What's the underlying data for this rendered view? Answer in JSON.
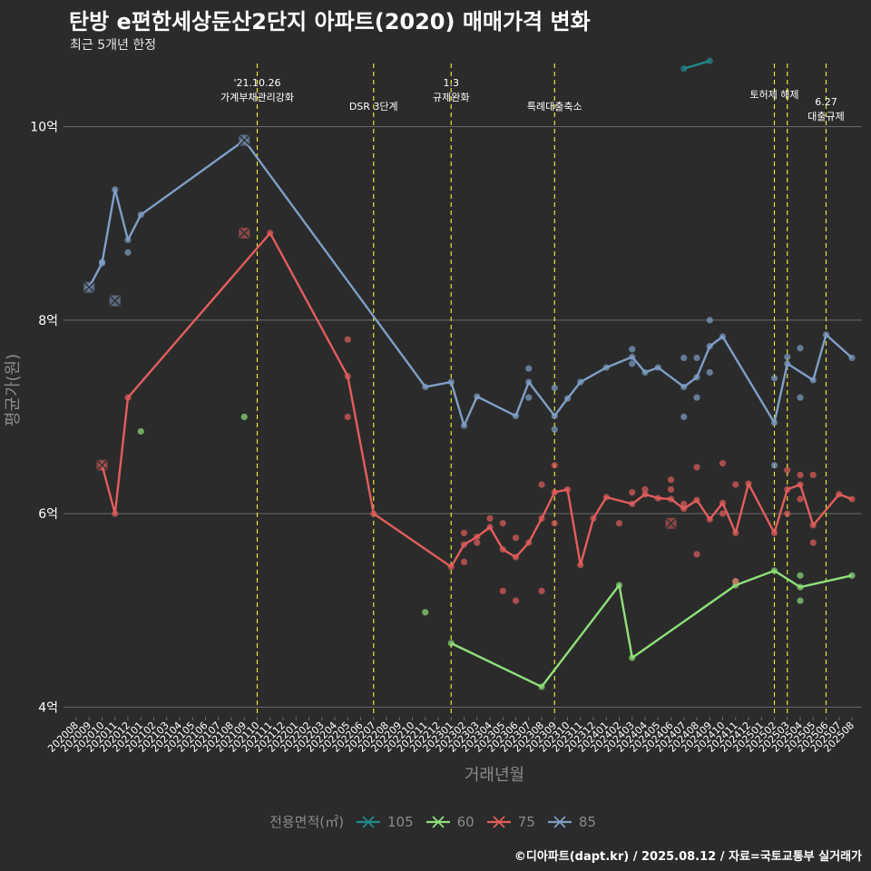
{
  "title": "탄방 e편한세상둔산2단지 아파트(2020) 매매가격 변화",
  "subtitle": "최근 5개년 한정",
  "caption": "©디아파트(dapt.kr) / 2025.08.12 / 자료=국토교통부 실거래가",
  "legend_title": "전용면적(㎡)",
  "chart_data": {
    "type": "line",
    "xlabel": "거래년월",
    "ylabel": "평균가(원)",
    "ylim": [
      3.9,
      10.7
    ],
    "yticks": [
      {
        "value": 4,
        "label": "4억"
      },
      {
        "value": 6,
        "label": "6억"
      },
      {
        "value": 8,
        "label": "8억"
      },
      {
        "value": 10,
        "label": "10억"
      }
    ],
    "categories": [
      "202008",
      "202009",
      "202010",
      "202011",
      "202012",
      "202101",
      "202102",
      "202103",
      "202104",
      "202105",
      "202106",
      "202107",
      "202108",
      "202109",
      "202110",
      "202111",
      "202112",
      "202201",
      "202202",
      "202203",
      "202204",
      "202205",
      "202206",
      "202207",
      "202208",
      "202209",
      "202210",
      "202211",
      "202212",
      "202301",
      "202302",
      "202303",
      "202304",
      "202305",
      "202306",
      "202307",
      "202308",
      "202309",
      "202310",
      "202311",
      "202312",
      "202401",
      "202402",
      "202403",
      "202404",
      "202405",
      "202406",
      "202407",
      "202408",
      "202409",
      "202410",
      "202411",
      "202412",
      "202501",
      "202502",
      "202503",
      "202504",
      "202505",
      "202506",
      "202507",
      "202508"
    ],
    "events": [
      {
        "x": "202110",
        "label": [
          "'21.10.26",
          "가계부채관리강화"
        ],
        "row": 0
      },
      {
        "x": "202207",
        "label": [
          "DSR 3단계"
        ],
        "row": 2
      },
      {
        "x": "202301",
        "label": [
          "1.3",
          "규제완화"
        ],
        "row": 0
      },
      {
        "x": "202309",
        "label": [
          "특례대출축소"
        ],
        "row": 2
      },
      {
        "x": "202502",
        "label": [
          "토허제 해제"
        ],
        "row": 1
      },
      {
        "x": "202503",
        "label": [],
        "row": 1
      },
      {
        "x": "202506",
        "label": [
          "6.27",
          "대출규제"
        ],
        "row": 1.6
      }
    ],
    "series": [
      {
        "name": "105",
        "color": "#1f8a8a",
        "line": [
          [
            "202407",
            10.6
          ],
          [
            "202409",
            10.68
          ]
        ],
        "points": [],
        "crosses": []
      },
      {
        "name": "60",
        "color": "#8fe07a",
        "line": [
          [
            "202301",
            4.66
          ],
          [
            "202308",
            4.21
          ],
          [
            "202402",
            5.26
          ],
          [
            "202403",
            4.51
          ],
          [
            "202411",
            5.26
          ],
          [
            "202502",
            5.41
          ],
          [
            "202504",
            5.24
          ],
          [
            "202508",
            5.36
          ]
        ],
        "points": [
          [
            "202101",
            6.85
          ],
          [
            "202109",
            7.0
          ],
          [
            "202211",
            4.98
          ],
          [
            "202411",
            5.3
          ],
          [
            "202504",
            5.36
          ],
          [
            "202504",
            5.1
          ]
        ],
        "crosses": []
      },
      {
        "name": "75",
        "color": "#e35d5d",
        "line": [
          [
            "202010",
            6.5
          ],
          [
            "202011",
            6.0
          ],
          [
            "202012",
            7.2
          ],
          [
            "202111",
            8.9
          ],
          [
            "202205",
            7.42
          ],
          [
            "202207",
            6.0
          ],
          [
            "202301",
            5.45
          ],
          [
            "202302",
            5.68
          ],
          [
            "202303",
            5.76
          ],
          [
            "202304",
            5.86
          ],
          [
            "202305",
            5.63
          ],
          [
            "202306",
            5.55
          ],
          [
            "202307",
            5.7
          ],
          [
            "202308",
            5.95
          ],
          [
            "202309",
            6.22
          ],
          [
            "202310",
            6.25
          ],
          [
            "202311",
            5.47
          ],
          [
            "202312",
            5.95
          ],
          [
            "202401",
            6.17
          ],
          [
            "202403",
            6.1
          ],
          [
            "202404",
            6.2
          ],
          [
            "202405",
            6.16
          ],
          [
            "202406",
            6.15
          ],
          [
            "202407",
            6.05
          ],
          [
            "202408",
            6.14
          ],
          [
            "202409",
            5.94
          ],
          [
            "202410",
            6.11
          ],
          [
            "202411",
            5.8
          ],
          [
            "202412",
            6.31
          ],
          [
            "202502",
            5.8
          ],
          [
            "202503",
            6.25
          ],
          [
            "202504",
            6.3
          ],
          [
            "202505",
            5.88
          ],
          [
            "202507",
            6.2
          ],
          [
            "202508",
            6.15
          ]
        ],
        "points": [
          [
            "202205",
            7.8
          ],
          [
            "202205",
            7.0
          ],
          [
            "202302",
            5.8
          ],
          [
            "202302",
            5.5
          ],
          [
            "202303",
            5.7
          ],
          [
            "202304",
            5.95
          ],
          [
            "202305",
            5.9
          ],
          [
            "202305",
            5.2
          ],
          [
            "202306",
            5.75
          ],
          [
            "202306",
            5.1
          ],
          [
            "202308",
            6.3
          ],
          [
            "202308",
            5.2
          ],
          [
            "202309",
            6.5
          ],
          [
            "202309",
            5.9
          ],
          [
            "202402",
            5.9
          ],
          [
            "202403",
            6.22
          ],
          [
            "202404",
            6.25
          ],
          [
            "202406",
            6.35
          ],
          [
            "202406",
            6.25
          ],
          [
            "202407",
            6.1
          ],
          [
            "202408",
            6.48
          ],
          [
            "202408",
            5.58
          ],
          [
            "202410",
            6.52
          ],
          [
            "202410",
            6.0
          ],
          [
            "202411",
            6.3
          ],
          [
            "202411",
            5.3
          ],
          [
            "202503",
            6.45
          ],
          [
            "202503",
            6.0
          ],
          [
            "202504",
            6.4
          ],
          [
            "202504",
            6.15
          ],
          [
            "202505",
            6.4
          ],
          [
            "202505",
            5.7
          ]
        ],
        "crosses": [
          [
            "202010",
            6.5
          ],
          [
            "202109",
            8.9
          ],
          [
            "202406",
            5.9
          ]
        ]
      },
      {
        "name": "85",
        "color": "#7f9fc8",
        "line": [
          [
            "202009",
            8.34
          ],
          [
            "202010",
            8.59
          ],
          [
            "202011",
            9.35
          ],
          [
            "202012",
            8.83
          ],
          [
            "202101",
            9.09
          ],
          [
            "202109",
            9.86
          ],
          [
            "202211",
            7.31
          ],
          [
            "202301",
            7.36
          ],
          [
            "202302",
            6.91
          ],
          [
            "202303",
            7.21
          ],
          [
            "202306",
            7.01
          ],
          [
            "202307",
            7.36
          ],
          [
            "202309",
            7.01
          ],
          [
            "202310",
            7.19
          ],
          [
            "202311",
            7.36
          ],
          [
            "202401",
            7.51
          ],
          [
            "202403",
            7.62
          ],
          [
            "202404",
            7.46
          ],
          [
            "202405",
            7.51
          ],
          [
            "202407",
            7.31
          ],
          [
            "202408",
            7.41
          ],
          [
            "202409",
            7.73
          ],
          [
            "202410",
            7.83
          ],
          [
            "202502",
            6.94
          ],
          [
            "202503",
            7.55
          ],
          [
            "202505",
            7.38
          ],
          [
            "202506",
            7.85
          ],
          [
            "202508",
            7.61
          ]
        ],
        "points": [
          [
            "202010",
            8.6
          ],
          [
            "202012",
            8.7
          ],
          [
            "202307",
            7.5
          ],
          [
            "202307",
            7.2
          ],
          [
            "202309",
            7.3
          ],
          [
            "202309",
            6.87
          ],
          [
            "202403",
            7.7
          ],
          [
            "202403",
            7.55
          ],
          [
            "202407",
            7.61
          ],
          [
            "202407",
            7.0
          ],
          [
            "202408",
            7.61
          ],
          [
            "202408",
            7.2
          ],
          [
            "202409",
            8.0
          ],
          [
            "202409",
            7.46
          ],
          [
            "202502",
            7.4
          ],
          [
            "202502",
            6.5
          ],
          [
            "202503",
            7.62
          ],
          [
            "202504",
            7.71
          ],
          [
            "202504",
            7.2
          ]
        ],
        "crosses": [
          [
            "202009",
            8.34
          ],
          [
            "202011",
            8.2
          ],
          [
            "202109",
            9.86
          ]
        ]
      }
    ],
    "legend_position": "bottom",
    "grid": true
  }
}
